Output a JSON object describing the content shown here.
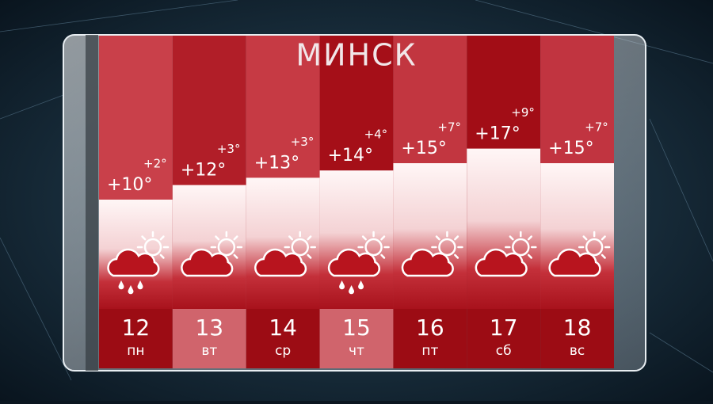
{
  "chart_data": {
    "type": "bar",
    "title": "МИНСК",
    "categories": [
      "12",
      "13",
      "14",
      "15",
      "16",
      "17",
      "18"
    ],
    "weekdays": [
      "пн",
      "вт",
      "ср",
      "чт",
      "пт",
      "сб",
      "вс"
    ],
    "values": [
      10,
      12,
      13,
      14,
      15,
      17,
      15
    ],
    "value_labels": [
      "+10°",
      "+12°",
      "+13°",
      "+14°",
      "+15°",
      "+17°",
      "+15°"
    ],
    "night_labels": [
      "+2°",
      "+3°",
      "+3°",
      "+4°",
      "+7°",
      "+9°",
      "+7°"
    ],
    "icons": [
      "rain",
      "cloud",
      "cloud",
      "rain",
      "cloud",
      "cloud",
      "cloud"
    ],
    "color": "#fdf3f3",
    "ylim": [
      -5,
      32.5
    ]
  }
}
